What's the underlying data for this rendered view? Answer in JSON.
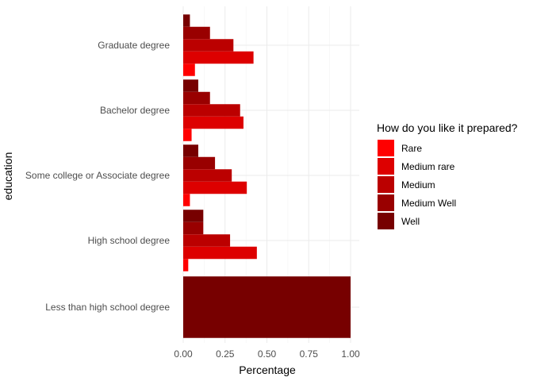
{
  "chart_data": {
    "type": "bar",
    "orientation": "horizontal",
    "position": "dodge",
    "xlabel": "Percentage",
    "ylabel": "education",
    "xlim": [
      0,
      1.05
    ],
    "x_ticks": [
      0.0,
      0.25,
      0.5,
      0.75,
      1.0
    ],
    "x_tick_labels": [
      "0.00",
      "0.25",
      "0.50",
      "0.75",
      "1.00"
    ],
    "grid": true,
    "categories": [
      "Graduate degree",
      "Bachelor degree",
      "Some college or Associate degree",
      "High school degree",
      "Less than high school degree"
    ],
    "series": [
      {
        "name": "Rare",
        "color": "#ff0000",
        "values": [
          0.07,
          0.05,
          0.04,
          0.03,
          null
        ]
      },
      {
        "name": "Medium rare",
        "color": "#dd0000",
        "values": [
          0.42,
          0.36,
          0.38,
          0.44,
          null
        ]
      },
      {
        "name": "Medium",
        "color": "#bb0000",
        "values": [
          0.3,
          0.34,
          0.29,
          0.28,
          null
        ]
      },
      {
        "name": "Medium Well",
        "color": "#990000",
        "values": [
          0.16,
          0.16,
          0.19,
          0.12,
          null
        ]
      },
      {
        "name": "Well",
        "color": "#770000",
        "values": [
          0.04,
          0.09,
          0.09,
          0.12,
          1.0
        ]
      }
    ],
    "legend": {
      "title": "How do you like it prepared?",
      "placement": "right"
    }
  }
}
